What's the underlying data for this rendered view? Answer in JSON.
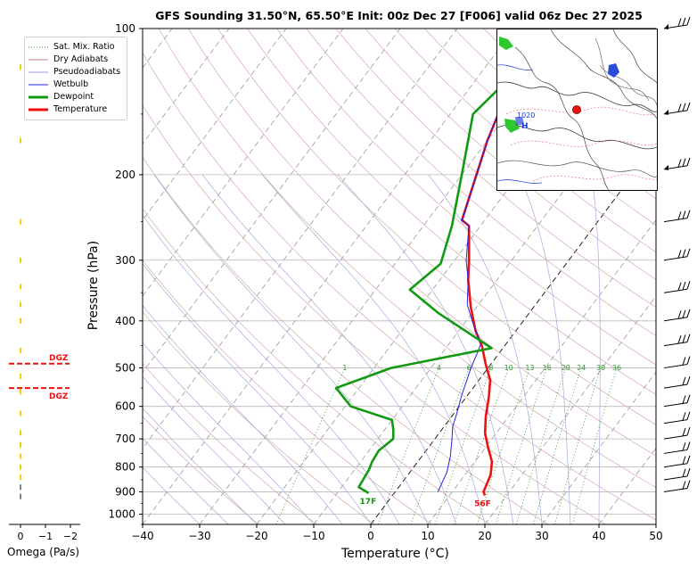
{
  "title": "GFS Sounding 31.50°N, 65.50°E Init: 00z Dec 27 [F006] valid 06z Dec 27 2025",
  "legend": {
    "items": [
      {
        "label": "Sat. Mix. Ratio",
        "color": "#2e8b2e",
        "style": "dotted",
        "width": 1
      },
      {
        "label": "Dry Adiabats",
        "color": "#c08a8a",
        "style": "solid",
        "width": 1
      },
      {
        "label": "Pseudoadiabats",
        "color": "#9a9ad8",
        "style": "solid",
        "width": 1
      },
      {
        "label": "Wetbulb",
        "color": "#2222dd",
        "style": "solid",
        "width": 1
      },
      {
        "label": "Dewpoint",
        "color": "#119911",
        "style": "solid",
        "width": 3
      },
      {
        "label": "Temperature",
        "color": "#ee1111",
        "style": "solid",
        "width": 3
      }
    ]
  },
  "axes": {
    "xlabel": "Temperature (°C)",
    "ylabel": "Pressure (hPa)",
    "xticks": [
      -40,
      -30,
      -20,
      -10,
      0,
      10,
      20,
      30,
      40,
      50
    ],
    "yticks": [
      100,
      200,
      300,
      400,
      500,
      600,
      700,
      800,
      900,
      1000
    ]
  },
  "chart_data": {
    "type": "line",
    "title": "GFS Sounding 31.50°N, 65.50°E Init: 00z Dec 27 [F006] valid 06z Dec 27 2025",
    "xlabel": "Temperature (°C)",
    "ylabel": "Pressure (hPa)",
    "xlim": [
      -40,
      50
    ],
    "ylim": [
      1050,
      100
    ],
    "yscale": "log",
    "skew": "skew-T",
    "series": [
      {
        "name": "Temperature",
        "color": "#ee1111",
        "points": [
          [
            16.2,
            915
          ],
          [
            15.5,
            900
          ],
          [
            14.5,
            830
          ],
          [
            13,
            780
          ],
          [
            10,
            720
          ],
          [
            8,
            680
          ],
          [
            6,
            630
          ],
          [
            4,
            575
          ],
          [
            2,
            530
          ],
          [
            -1,
            490
          ],
          [
            -4,
            450
          ],
          [
            -7,
            420
          ],
          [
            -11,
            375
          ],
          [
            -15,
            330
          ],
          [
            -17.5,
            300
          ],
          [
            -22,
            255
          ],
          [
            -24,
            248
          ],
          [
            -30,
            170
          ],
          [
            -32,
            145
          ],
          [
            -38,
            100
          ]
        ]
      },
      {
        "name": "Wetbulb",
        "color": "#2222dd",
        "points": [
          [
            7.5,
            900
          ],
          [
            7,
            860
          ],
          [
            6.5,
            820
          ],
          [
            5,
            760
          ],
          [
            3,
            700
          ],
          [
            1.5,
            660
          ],
          [
            0.5,
            620
          ],
          [
            -1,
            570
          ],
          [
            -3,
            500
          ],
          [
            -4,
            460
          ],
          [
            -4.5,
            445
          ],
          [
            -8,
            410
          ],
          [
            -12,
            370
          ],
          [
            -15,
            330
          ],
          [
            -18,
            300
          ],
          [
            -22,
            255
          ],
          [
            -24,
            248
          ],
          [
            -30,
            170
          ],
          [
            -32,
            145
          ],
          [
            -38,
            100
          ]
        ]
      },
      {
        "name": "Dewpoint",
        "color": "#119911",
        "points": [
          [
            -4.5,
            905
          ],
          [
            -7,
            880
          ],
          [
            -7.5,
            810
          ],
          [
            -8,
            780
          ],
          [
            -8.3,
            740
          ],
          [
            -7.3,
            700
          ],
          [
            -8.5,
            670
          ],
          [
            -10,
            640
          ],
          [
            -19,
            600
          ],
          [
            -24,
            550
          ],
          [
            -17,
            500
          ],
          [
            -2,
            455
          ],
          [
            -16,
            385
          ],
          [
            -24,
            345
          ],
          [
            -22,
            305
          ],
          [
            -25,
            255
          ],
          [
            -30,
            200
          ],
          [
            -36,
            150
          ],
          [
            -32,
            100
          ]
        ]
      }
    ],
    "wind_barbs_side": "right",
    "omega": {
      "xlabel": "Omega (Pa/s)",
      "xticks": [
        "0",
        "−1",
        "−2"
      ],
      "dgz_labels": [
        {
          "label": "DGZ",
          "pressure": 490
        },
        {
          "label": "DGZ",
          "pressure": 550
        }
      ]
    },
    "annotations": {
      "surface_dewpoint": "17F",
      "surface_temperature": "56F",
      "mixing_ratio_labels": [
        "1",
        "4",
        "6",
        "8",
        "10",
        "13",
        "16",
        "20",
        "24",
        "30",
        "36"
      ]
    }
  },
  "inset_map": {
    "pressure_label": "1020",
    "high_label": "H",
    "marker_color": "#ee1111"
  }
}
